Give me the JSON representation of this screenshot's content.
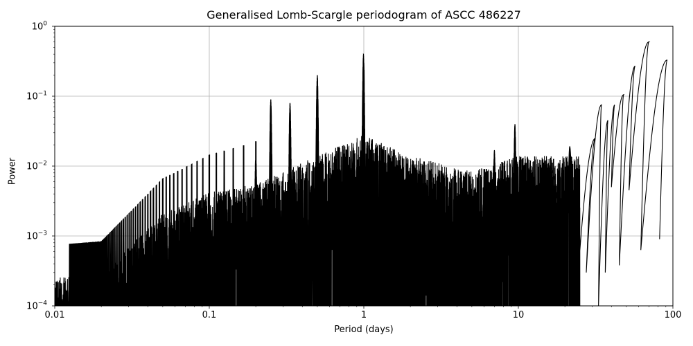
{
  "chart_data": {
    "type": "line",
    "title": "Generalised Lomb-Scargle periodogram of ASCC 486227",
    "xlabel": "Period (days)",
    "ylabel": "Power",
    "xscale": "log",
    "yscale": "log",
    "xlim": [
      0.01,
      100
    ],
    "ylim": [
      0.0001,
      1
    ],
    "grid": true,
    "xticks": [
      {
        "value": 0.01,
        "label": "0.01"
      },
      {
        "value": 0.1,
        "label": "0.1"
      },
      {
        "value": 1,
        "label": "1"
      },
      {
        "value": 10,
        "label": "10"
      },
      {
        "value": 100,
        "label": "100"
      }
    ],
    "yticks": [
      {
        "value": 1,
        "base": "10",
        "exp": "0"
      },
      {
        "value": 0.1,
        "base": "10",
        "exp": "−1"
      },
      {
        "value": 0.01,
        "base": "10",
        "exp": "−2"
      },
      {
        "value": 0.001,
        "base": "10",
        "exp": "−3"
      },
      {
        "value": 0.0001,
        "base": "10",
        "exp": "−4"
      }
    ],
    "line_color": "#000000",
    "grid_color": "#b0b0b0",
    "notable_peaks": [
      {
        "period": 0.2,
        "power": 0.015
      },
      {
        "period": 0.25,
        "power": 0.09
      },
      {
        "period": 0.333,
        "power": 0.08
      },
      {
        "period": 0.5,
        "power": 0.2
      },
      {
        "period": 0.995,
        "power": 0.4
      },
      {
        "period": 7.0,
        "power": 0.017
      },
      {
        "period": 9.5,
        "power": 0.04
      },
      {
        "period": 16.0,
        "power": 0.01
      },
      {
        "period": 21.5,
        "power": 0.019
      },
      {
        "period": 31.5,
        "power": 0.025
      },
      {
        "period": 34.5,
        "power": 0.075
      },
      {
        "period": 38.0,
        "power": 0.045
      },
      {
        "period": 42.0,
        "power": 0.075
      },
      {
        "period": 48.0,
        "power": 0.105
      },
      {
        "period": 57.0,
        "power": 0.27
      },
      {
        "period": 70.0,
        "power": 0.6
      },
      {
        "period": 92.0,
        "power": 0.33
      }
    ],
    "envelope": [
      {
        "period": 0.01,
        "power": 0.00018
      },
      {
        "period": 0.02,
        "power": 0.0002
      },
      {
        "period": 0.05,
        "power": 0.0015
      },
      {
        "period": 0.1,
        "power": 0.003
      },
      {
        "period": 0.2,
        "power": 0.004
      },
      {
        "period": 0.5,
        "power": 0.01
      },
      {
        "period": 1,
        "power": 0.02
      },
      {
        "period": 2,
        "power": 0.01
      },
      {
        "period": 5,
        "power": 0.006
      },
      {
        "period": 10,
        "power": 0.01
      }
    ]
  }
}
